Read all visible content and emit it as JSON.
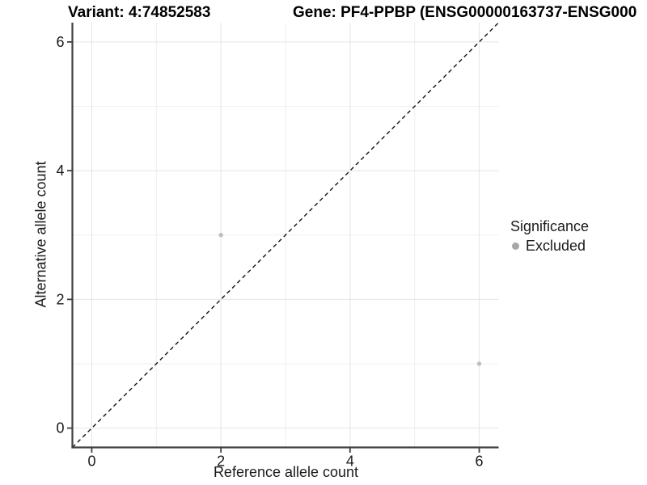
{
  "chart_data": {
    "type": "scatter",
    "variant_title": "Variant: 4:74852583",
    "gene_title": "Gene: PF4-PPBP (ENSG00000163737-ENSG000",
    "xlabel": "Reference allele count",
    "ylabel": "Alternative allele count",
    "xlim": [
      -0.3,
      6.3
    ],
    "ylim": [
      -0.3,
      6.3
    ],
    "xticks": [
      0,
      2,
      4,
      6
    ],
    "yticks": [
      0,
      2,
      4,
      6
    ],
    "xminor": [
      1,
      3,
      5
    ],
    "yminor": [
      1,
      3,
      5
    ],
    "grid": true,
    "legend_position": "right",
    "identity_line": {
      "style": "dashed",
      "from": [
        -0.3,
        -0.3
      ],
      "to": [
        6.3,
        6.3
      ],
      "color": "#111111"
    },
    "series": [
      {
        "name": "Excluded",
        "color": "#bebebe",
        "points": [
          {
            "x": 2,
            "y": 3
          },
          {
            "x": 6,
            "y": 1
          }
        ]
      }
    ],
    "legend": {
      "title": "Significance",
      "items": [
        {
          "label": "Excluded",
          "key_color": "#a8a8a8"
        }
      ]
    },
    "colors": {
      "background": "#ffffff",
      "grid_major": "#e4e4e4",
      "grid_minor": "#efefef",
      "axis": "#3f3f3f",
      "text": "#1a1a1a"
    }
  }
}
